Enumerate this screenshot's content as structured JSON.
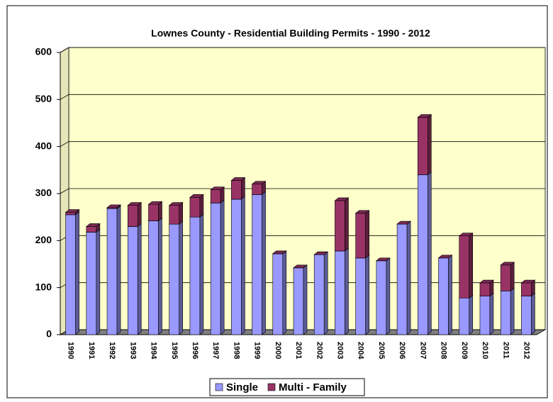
{
  "chart_data": {
    "type": "stacked-bar-3d",
    "title": "Lownes County - Residential Building Permits - 1990 - 2012",
    "categories": [
      "1990",
      "1991",
      "1992",
      "1993",
      "1994",
      "1995",
      "1996",
      "1997",
      "1998",
      "1999",
      "2000",
      "2001",
      "2002",
      "2003",
      "2004",
      "2005",
      "2006",
      "2007",
      "2008",
      "2009",
      "2010",
      "2011",
      "2012"
    ],
    "series": [
      {
        "name": "Single",
        "color": "#9999ff",
        "values": [
          255,
          218,
          268,
          230,
          242,
          235,
          250,
          280,
          288,
          298,
          172,
          142,
          170,
          178,
          163,
          157,
          235,
          340,
          163,
          78,
          82,
          93,
          82
        ]
      },
      {
        "name": "Multi - Family",
        "color": "#993366",
        "values": [
          5,
          12,
          2,
          45,
          35,
          40,
          42,
          28,
          40,
          22,
          0,
          0,
          0,
          107,
          95,
          0,
          0,
          122,
          0,
          132,
          28,
          55,
          28
        ]
      }
    ],
    "ylim": [
      0,
      600
    ],
    "yticks": [
      0,
      100,
      200,
      300,
      400,
      500,
      600
    ],
    "grid": true,
    "legend": "bottom"
  }
}
